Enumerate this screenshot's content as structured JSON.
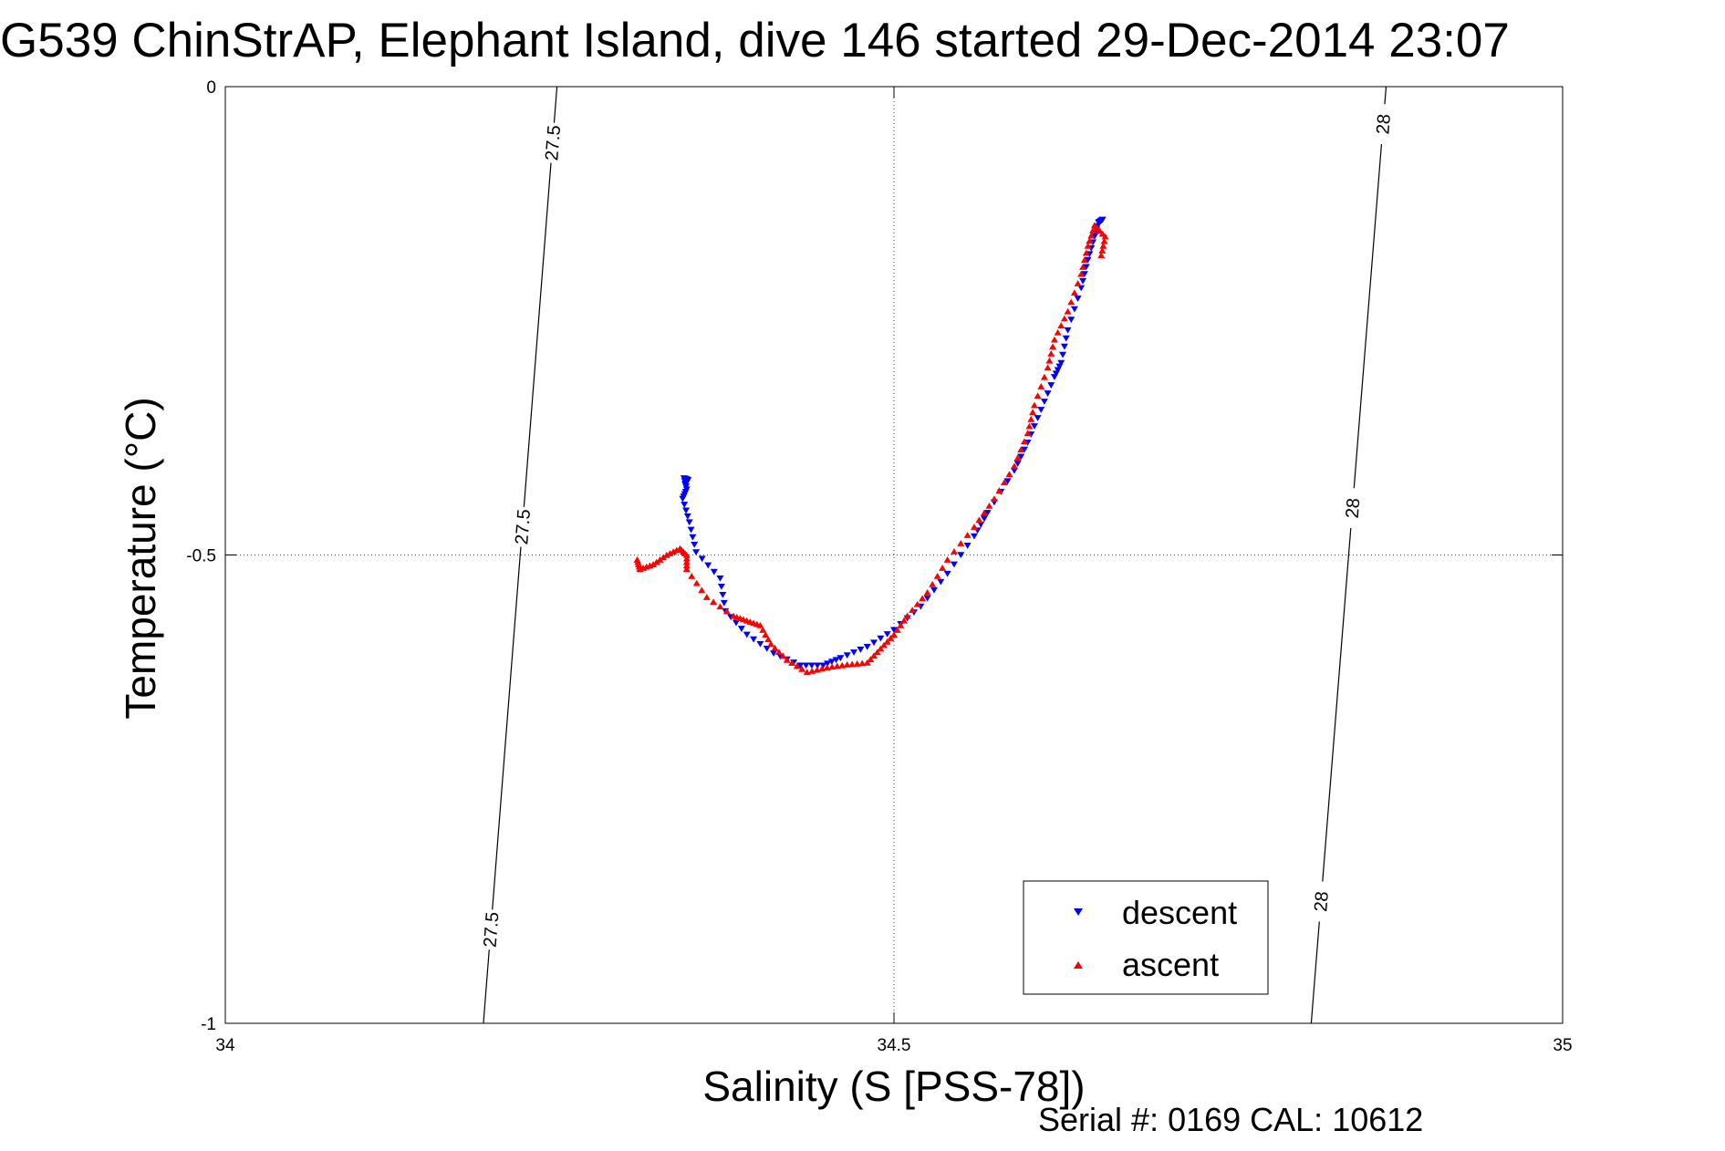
{
  "chart_data": {
    "type": "scatter",
    "title": "G539 ChinStrAP, Elephant Island, dive 146 started 29-Dec-2014 23:07",
    "xlabel": "Salinity (S [PSS-78])",
    "ylabel": "Temperature (°C)",
    "xlim": [
      34,
      35
    ],
    "ylim": [
      -1,
      0
    ],
    "xticks": [
      "34",
      "34.5",
      "35"
    ],
    "yticks": [
      "0",
      "-0.5",
      "-1"
    ],
    "grid": "dotted at 34.5 and -0.5",
    "legend_placement": "bottom-right",
    "footer": "Serial #: 0169 CAL: 10612",
    "colors": {
      "descent": "#0000ff",
      "ascent": "#ff0000",
      "contour": "#000000"
    },
    "isopycnals": [
      {
        "label": "27.5",
        "x_top": 34.248,
        "x_bottom": 34.193,
        "labels_at_y": [
          -0.06,
          -0.47,
          -0.9
        ]
      },
      {
        "label": "28",
        "x_top": 34.868,
        "x_bottom": 34.812,
        "labels_at_y": [
          -0.04,
          -0.45,
          -0.87
        ]
      }
    ],
    "series": [
      {
        "name": "descent",
        "marker": "triangle-down",
        "points": [
          [
            34.344,
            -0.425
          ],
          [
            34.346,
            -0.42
          ],
          [
            34.343,
            -0.418
          ],
          [
            34.345,
            -0.43
          ],
          [
            34.342,
            -0.44
          ],
          [
            34.347,
            -0.465
          ],
          [
            34.352,
            -0.497
          ],
          [
            34.37,
            -0.525
          ],
          [
            34.374,
            -0.56
          ],
          [
            34.39,
            -0.585
          ],
          [
            34.41,
            -0.605
          ],
          [
            34.43,
            -0.618
          ],
          [
            34.447,
            -0.618
          ],
          [
            34.46,
            -0.61
          ],
          [
            34.48,
            -0.598
          ],
          [
            34.5,
            -0.58
          ],
          [
            34.52,
            -0.555
          ],
          [
            34.54,
            -0.52
          ],
          [
            34.56,
            -0.48
          ],
          [
            34.57,
            -0.455
          ],
          [
            34.59,
            -0.41
          ],
          [
            34.6,
            -0.38
          ],
          [
            34.61,
            -0.345
          ],
          [
            34.62,
            -0.31
          ],
          [
            34.625,
            -0.295
          ],
          [
            34.63,
            -0.26
          ],
          [
            34.64,
            -0.215
          ],
          [
            34.645,
            -0.185
          ],
          [
            34.65,
            -0.16
          ],
          [
            34.653,
            -0.145
          ],
          [
            34.656,
            -0.142
          ]
        ]
      },
      {
        "name": "ascent",
        "marker": "triangle-up",
        "points": [
          [
            34.308,
            -0.505
          ],
          [
            34.31,
            -0.515
          ],
          [
            34.32,
            -0.51
          ],
          [
            34.33,
            -0.5
          ],
          [
            34.34,
            -0.493
          ],
          [
            34.345,
            -0.5
          ],
          [
            34.345,
            -0.515
          ],
          [
            34.36,
            -0.545
          ],
          [
            34.38,
            -0.565
          ],
          [
            34.39,
            -0.57
          ],
          [
            34.4,
            -0.575
          ],
          [
            34.408,
            -0.595
          ],
          [
            34.42,
            -0.612
          ],
          [
            34.435,
            -0.625
          ],
          [
            34.45,
            -0.62
          ],
          [
            34.465,
            -0.617
          ],
          [
            34.48,
            -0.615
          ],
          [
            34.49,
            -0.6
          ],
          [
            34.5,
            -0.585
          ],
          [
            34.51,
            -0.565
          ],
          [
            34.525,
            -0.54
          ],
          [
            34.54,
            -0.505
          ],
          [
            34.56,
            -0.47
          ],
          [
            34.575,
            -0.44
          ],
          [
            34.59,
            -0.405
          ],
          [
            34.6,
            -0.37
          ],
          [
            34.605,
            -0.34
          ],
          [
            34.615,
            -0.3
          ],
          [
            34.62,
            -0.27
          ],
          [
            34.63,
            -0.24
          ],
          [
            34.64,
            -0.2
          ],
          [
            34.645,
            -0.17
          ],
          [
            34.65,
            -0.148
          ],
          [
            34.658,
            -0.16
          ],
          [
            34.655,
            -0.18
          ]
        ]
      }
    ]
  }
}
